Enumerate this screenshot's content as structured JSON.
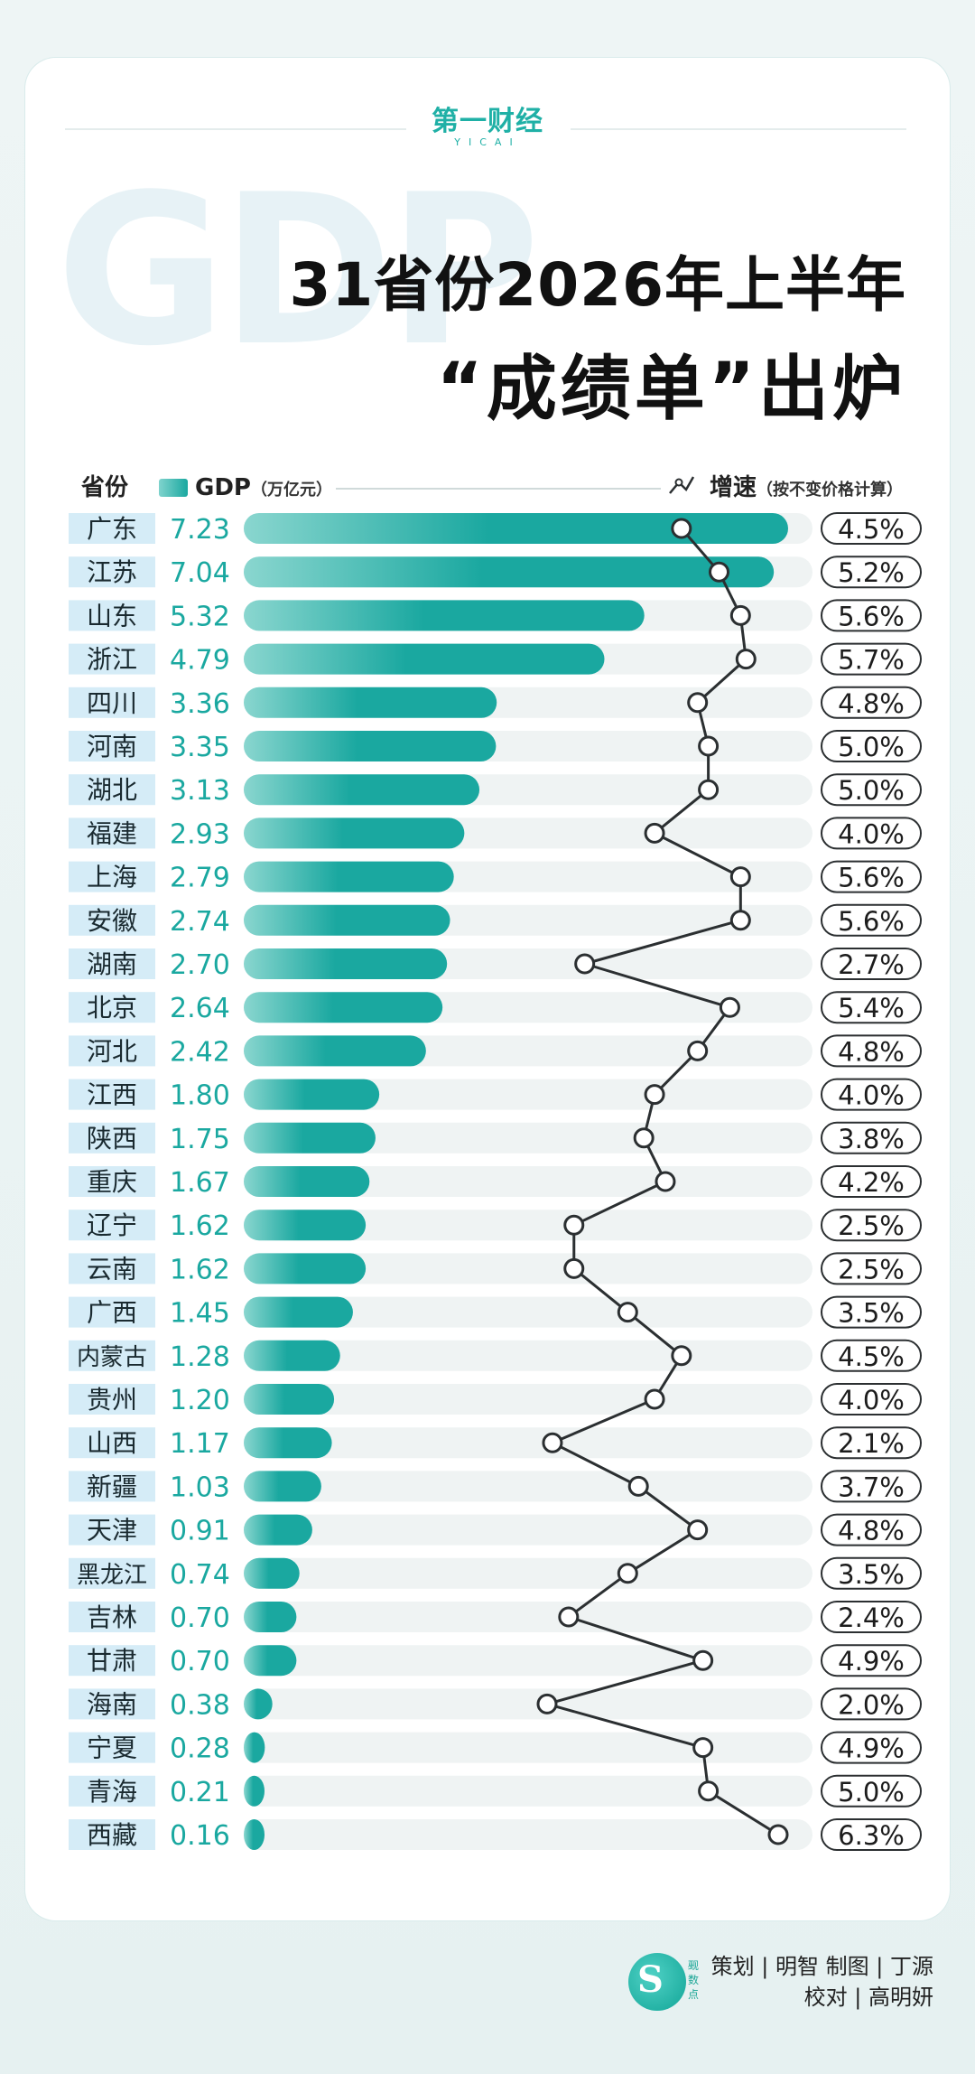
{
  "logo": {
    "brand": "第一财经",
    "sub": "YICAI"
  },
  "background_word": "GDP",
  "title": {
    "line1": "31省份2026年上半年",
    "line2": "“成绩单”出炉"
  },
  "header": {
    "province_label": "省份",
    "gdp_label": "GDP",
    "gdp_unit": "（万亿元）",
    "speed_label": "增速",
    "speed_note": "（按不变价格计算）"
  },
  "colors": {
    "accent": "#1aa8a0",
    "accent_light": "#8ad6cf",
    "label_bg": "#d5ecf7",
    "row_bg": "#eff3f3",
    "line": "#2b2f31"
  },
  "chart_data": {
    "type": "bar",
    "categories": [
      "广东",
      "江苏",
      "山东",
      "浙江",
      "四川",
      "河南",
      "湖北",
      "福建",
      "上海",
      "安徽",
      "湖南",
      "北京",
      "河北",
      "江西",
      "陕西",
      "重庆",
      "辽宁",
      "云南",
      "广西",
      "内蒙古",
      "贵州",
      "山西",
      "新疆",
      "天津",
      "黑龙江",
      "吉林",
      "甘肃",
      "海南",
      "宁夏",
      "青海",
      "西藏"
    ],
    "series": [
      {
        "name": "GDP",
        "unit": "万亿元",
        "type": "bar",
        "values": [
          7.23,
          7.04,
          5.32,
          4.79,
          3.36,
          3.35,
          3.13,
          2.93,
          2.79,
          2.74,
          2.7,
          2.64,
          2.42,
          1.8,
          1.75,
          1.67,
          1.62,
          1.62,
          1.45,
          1.28,
          1.2,
          1.17,
          1.03,
          0.91,
          0.74,
          0.7,
          0.7,
          0.38,
          0.28,
          0.21,
          0.16
        ]
      },
      {
        "name": "增速",
        "unit": "%",
        "type": "line",
        "values": [
          4.5,
          5.2,
          5.6,
          5.7,
          4.8,
          5.0,
          5.0,
          4.0,
          5.6,
          5.6,
          2.7,
          5.4,
          4.8,
          4.0,
          3.8,
          4.2,
          2.5,
          2.5,
          3.5,
          4.5,
          4.0,
          2.1,
          3.7,
          4.8,
          3.5,
          2.4,
          4.9,
          2.0,
          4.9,
          5.0,
          6.3
        ]
      }
    ],
    "speed_labels": [
      "4.5%",
      "5.2%",
      "5.6%",
      "5.7%",
      "4.8%",
      "5.0%",
      "5.0%",
      "4.0%",
      "5.6%",
      "5.6%",
      "2.7%",
      "5.4%",
      "4.8%",
      "4.0%",
      "3.8%",
      "4.2%",
      "2.5%",
      "2.5%",
      "3.5%",
      "4.5%",
      "4.0%",
      "2.1%",
      "3.7%",
      "4.8%",
      "3.5%",
      "2.4%",
      "4.9%",
      "2.0%",
      "4.9%",
      "5.0%",
      "6.3%"
    ],
    "gdp_labels": [
      "7.23",
      "7.04",
      "5.32",
      "4.79",
      "3.36",
      "3.35",
      "3.13",
      "2.93",
      "2.79",
      "2.74",
      "2.70",
      "2.64",
      "2.42",
      "1.80",
      "1.75",
      "1.67",
      "1.62",
      "1.62",
      "1.45",
      "1.28",
      "1.20",
      "1.17",
      "1.03",
      "0.91",
      "0.74",
      "0.70",
      "0.70",
      "0.38",
      "0.28",
      "0.21",
      "0.16"
    ],
    "gdp_range": [
      0,
      7.23
    ],
    "speed_range": [
      2.0,
      6.3
    ]
  },
  "credits": {
    "line1": "策划 | 明智  制图 | 丁源",
    "line2": "校对 | 高明妍",
    "logo_small": "觋数点"
  }
}
